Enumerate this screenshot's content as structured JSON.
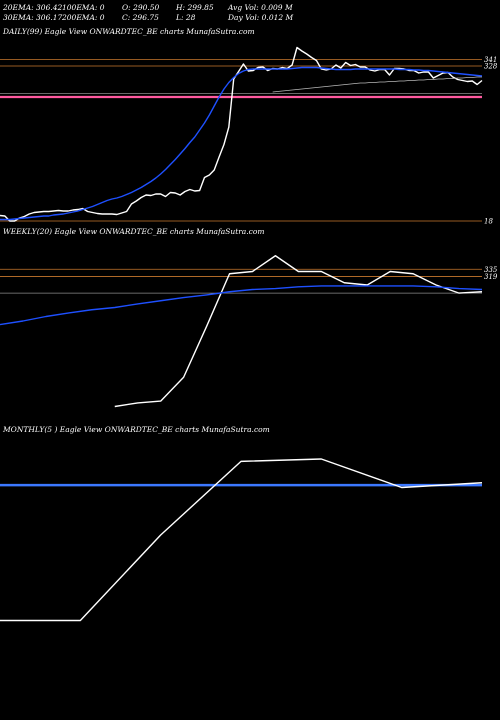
{
  "header": {
    "row1": [
      "20EMA: 306.42",
      "100EMA: 0",
      "O: 290.50",
      "H: 299.85",
      "Avg Vol: 0.009 M"
    ],
    "row2": [
      "30EMA: 306.17",
      "200EMA: 0",
      "C: 296.75",
      "L: 28",
      "Day Vol: 0.012  M"
    ]
  },
  "colors": {
    "background": "#000000",
    "price": "#ffffff",
    "ema": "#1e50ff",
    "ema_grey": "#b8b8b8",
    "level": "#c8782e",
    "pink": "#ff5aa0",
    "blue_level": "#3c78ff",
    "grey_level": "#8c8c8c"
  },
  "chart_data": [
    {
      "type": "line",
      "title": "DAILY(99) Eagle  View  ONWARDTEC_BE charts MunafaSutra.com",
      "ylim": [
        0,
        380
      ],
      "y_tick_labels": [
        "341",
        "328",
        "18"
      ],
      "levels": [
        {
          "value": 341,
          "label": "341",
          "color": "level"
        },
        {
          "value": 328,
          "label": "328",
          "color": "level"
        },
        {
          "value": 18,
          "label": "18",
          "color": "level"
        },
        {
          "value": 266,
          "label": "",
          "color": "pink"
        },
        {
          "value": 273,
          "label": "",
          "color": "grey_level"
        }
      ],
      "series": [
        {
          "color": "price",
          "values": [
            29,
            28,
            18,
            18,
            24,
            27,
            32,
            35,
            36,
            37,
            37,
            38,
            39,
            38,
            38,
            40,
            41,
            43,
            37,
            35,
            33,
            32,
            32,
            32,
            31,
            34,
            37,
            52,
            58,
            65,
            70,
            69,
            72,
            72,
            67,
            75,
            74,
            70,
            77,
            81,
            78,
            79,
            105,
            110,
            120,
            146,
            171,
            206,
            302,
            317,
            332,
            318,
            319,
            325,
            326,
            319,
            323,
            322,
            325,
            323,
            330,
            365,
            358,
            352,
            345,
            339,
            322,
            320,
            322,
            330,
            324,
            335,
            329,
            331,
            326,
            326,
            320,
            318,
            321,
            321,
            310,
            323,
            323,
            322,
            319,
            319,
            314,
            316,
            316,
            304,
            309,
            314,
            315,
            306,
            301,
            299,
            297,
            298,
            291,
            299
          ]
        },
        {
          "color": "ema",
          "values": [
            21,
            21,
            21,
            22,
            23,
            24,
            25,
            26,
            27,
            28,
            28,
            30,
            31,
            32,
            34,
            36,
            38,
            41,
            44,
            47,
            51,
            55,
            59,
            62,
            64,
            67,
            71,
            75,
            80,
            85,
            91,
            97,
            104,
            112,
            121,
            131,
            141,
            152,
            163,
            175,
            186,
            200,
            214,
            230,
            248,
            266,
            282,
            295,
            305,
            313,
            318,
            321,
            322,
            322,
            322,
            322,
            322,
            322,
            322,
            322,
            323,
            324,
            325,
            325,
            325,
            325,
            324,
            323,
            322,
            321,
            321,
            321,
            321,
            322,
            322,
            322,
            322,
            322,
            322,
            322,
            322,
            322,
            321,
            321,
            321,
            320,
            320,
            319,
            319,
            318,
            317,
            316,
            315,
            314,
            313,
            312,
            311,
            310,
            309,
            308
          ]
        },
        {
          "color": "ema_grey",
          "values": [
            null,
            null,
            null,
            null,
            null,
            null,
            null,
            null,
            null,
            null,
            null,
            null,
            null,
            null,
            null,
            null,
            null,
            null,
            null,
            null,
            null,
            null,
            null,
            null,
            null,
            null,
            null,
            null,
            null,
            null,
            null,
            null,
            null,
            null,
            null,
            null,
            null,
            null,
            null,
            null,
            null,
            null,
            null,
            null,
            null,
            null,
            null,
            null,
            null,
            null,
            null,
            null,
            null,
            null,
            null,
            null,
            276,
            277,
            278,
            279,
            280,
            281,
            282,
            283,
            284,
            285,
            286,
            287,
            288,
            289,
            290,
            291,
            292,
            293,
            294,
            294,
            295,
            295,
            296,
            296,
            297,
            297,
            298,
            298,
            299,
            299,
            300,
            300,
            301,
            301,
            302,
            302,
            303,
            303,
            304,
            304,
            305,
            305,
            306,
            306
          ]
        }
      ]
    },
    {
      "type": "line",
      "title": "WEEKLY(20) Eagle  View  ONWARDTEC_BE charts MunafaSutra.com",
      "ylim": [
        0,
        400
      ],
      "y_tick_labels": [
        "335",
        "319"
      ],
      "levels": [
        {
          "value": 335,
          "label": "335",
          "color": "level"
        },
        {
          "value": 319,
          "label": "319",
          "color": "level"
        },
        {
          "value": 282,
          "label": "",
          "color": "grey_level"
        }
      ],
      "series": [
        {
          "color": "price",
          "values": [
            null,
            null,
            null,
            null,
            null,
            30,
            38,
            42,
            95,
            208,
            325,
            330,
            365,
            330,
            330,
            305,
            300,
            330,
            325,
            300,
            282,
            285
          ]
        },
        {
          "color": "ema",
          "values": [
            212,
            220,
            230,
            238,
            245,
            250,
            258,
            265,
            272,
            278,
            285,
            290,
            292,
            296,
            298,
            298,
            298,
            298,
            298,
            296,
            292,
            290
          ]
        }
      ]
    },
    {
      "type": "line",
      "title": "MONTHLY(5         ) Eagle  View  ONWARDTEC_BE charts MunafaSutra.com",
      "ylim": [
        0,
        400
      ],
      "y_tick_labels": [],
      "levels": [
        {
          "value": 305,
          "label": "",
          "color": "blue_level"
        }
      ],
      "series": [
        {
          "color": "price",
          "values": [
            20,
            20,
            200,
            355,
            360,
            300,
            310
          ]
        }
      ]
    }
  ]
}
